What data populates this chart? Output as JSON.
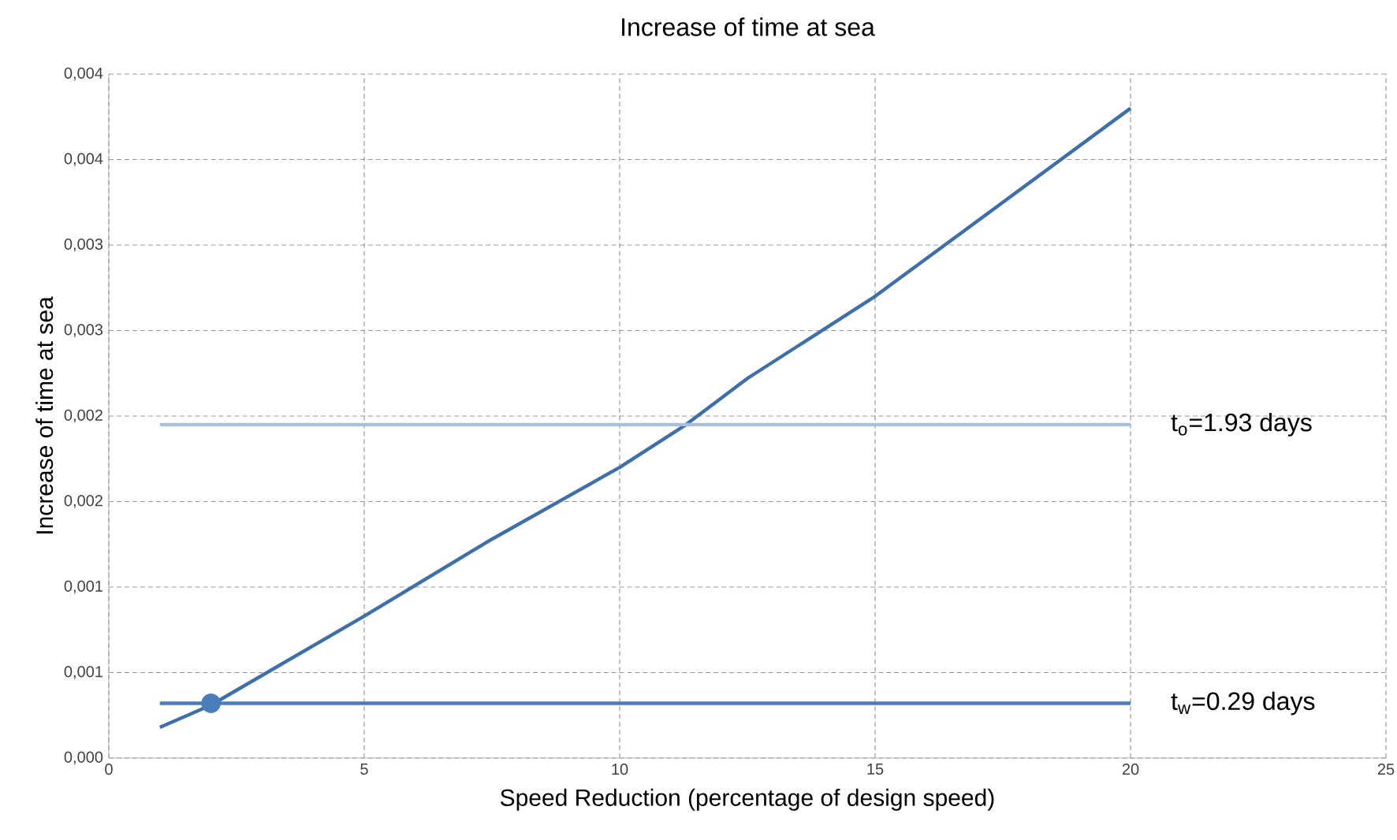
{
  "chart_data": {
    "type": "line",
    "title": "Increase of time at sea",
    "xlabel": "Speed Reduction (percentage of design speed)",
    "ylabel": "Increase of time  at sea",
    "xlim": [
      0,
      25
    ],
    "xticks": [
      0,
      5,
      10,
      15,
      20,
      25
    ],
    "ylim": [
      0,
      0.004
    ],
    "yticks": [
      {
        "value": 0,
        "label": "0,000"
      },
      {
        "value": 0.0005,
        "label": "0,001"
      },
      {
        "value": 0.001,
        "label": "0,001"
      },
      {
        "value": 0.0015,
        "label": "0,002"
      },
      {
        "value": 0.002,
        "label": "0,002"
      },
      {
        "value": 0.0025,
        "label": "0,003"
      },
      {
        "value": 0.003,
        "label": "0,003"
      },
      {
        "value": 0.0035,
        "label": "0,004"
      },
      {
        "value": 0.004,
        "label": "0,004"
      }
    ],
    "grid": true,
    "marker": "none",
    "line_style": "solid",
    "series": [
      {
        "color": "#3f6fab",
        "x": [
          1,
          2,
          5,
          7.5,
          10,
          11.3,
          12.5,
          15,
          17.5,
          20
        ],
        "values": [
          0.00018,
          0.00031,
          0.00083,
          0.00128,
          0.0017,
          0.00195,
          0.00222,
          0.0027,
          0.00325,
          0.0038
        ]
      },
      {
        "color": "#a8c0e0",
        "x": [
          1,
          20
        ],
        "values": [
          0.00195,
          0.00195
        ]
      },
      {
        "color": "#4a7ebb",
        "x": [
          1,
          20
        ],
        "values": [
          0.00032,
          0.00032
        ]
      },
      {
        "type": "scatter",
        "color": "#4a7ebb",
        "marker": "circle",
        "x": [
          2
        ],
        "values": [
          0.00032
        ]
      }
    ],
    "annotations": [
      {
        "text": "t$_{o}$=1.93  days",
        "x": 20,
        "y": 0.00195
      },
      {
        "text": "t$_{w}$=0.29  days",
        "x": 20,
        "y": 0.00032
      }
    ]
  }
}
